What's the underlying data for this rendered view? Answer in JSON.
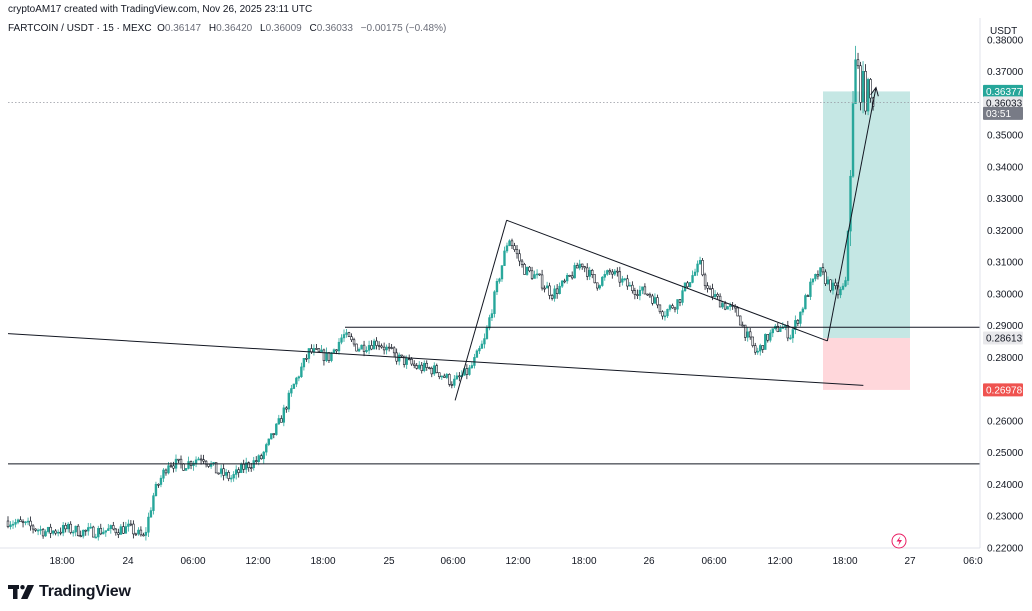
{
  "header": {
    "credit": "cryptoAM17 created with TradingView.com, Nov 26, 2025 23:11 UTC",
    "symbol": "FARTCOIN / USDT · 15 · MEXC",
    "open_label": "O",
    "open": "0.36147",
    "high_label": "H",
    "high": "0.36420",
    "low_label": "L",
    "low": "0.36009",
    "close_label": "C",
    "close": "0.36033",
    "change": "−0.00175 (−0.48%)"
  },
  "brand": {
    "name": "TradingView",
    "logo_icon": "tradingview-logo-icon"
  },
  "colors": {
    "up": "#26a69a",
    "down": "#131722",
    "target_zone": "#b2dfdb",
    "stop_zone": "#ffcdd2",
    "last_price": "#26a69a",
    "stop_label": "#ef5350",
    "gray_label": "#787b86",
    "line": "#131722"
  },
  "chart_data": {
    "type": "candlestick",
    "currency": "USDT",
    "ylim": [
      0.22,
      0.385
    ],
    "y_ticks": [
      "0.38000",
      "0.37000",
      "0.36000",
      "0.35000",
      "0.34000",
      "0.33000",
      "0.32000",
      "0.31000",
      "0.30000",
      "0.29000",
      "0.28000",
      "0.27000",
      "0.26000",
      "0.25000",
      "0.24000",
      "0.23000",
      "0.22000"
    ],
    "x_ticks": [
      "18:00",
      "24",
      "06:00",
      "12:00",
      "18:00",
      "25",
      "06:00",
      "12:00",
      "18:00",
      "26",
      "06:00",
      "12:00",
      "18:00",
      "27",
      "06:0"
    ],
    "price_labels": [
      {
        "text": "0.36377",
        "value": 0.36377,
        "role": "target"
      },
      {
        "text": "0.36033",
        "value": 0.36033,
        "role": "last"
      },
      {
        "text": "03:51",
        "value": null,
        "role": "countdown"
      },
      {
        "text": "0.28613",
        "value": 0.28613,
        "role": "entry"
      },
      {
        "text": "0.26978",
        "value": 0.26978,
        "role": "stop"
      }
    ],
    "horizontal_levels": [
      0.2895,
      0.2465
    ],
    "trendlines": [
      {
        "name": "descending support",
        "from": [
          0.0,
          0.2875
        ],
        "to": [
          0.88,
          0.2712
        ]
      },
      {
        "name": "pennant upper",
        "from": [
          0.513,
          0.3232
        ],
        "to": [
          0.843,
          0.2852
        ]
      },
      {
        "name": "flagpole",
        "from": [
          0.46,
          0.2665
        ],
        "to": [
          0.513,
          0.3232
        ]
      }
    ],
    "arrow": {
      "from": [
        0.843,
        0.2852
      ],
      "to": [
        0.893,
        0.365
      ]
    },
    "position": {
      "entry": 0.28613,
      "target": 0.36377,
      "stop": 0.26978
    },
    "candle_path": [
      [
        0.0,
        0.2285
      ],
      [
        0.02,
        0.227
      ],
      [
        0.04,
        0.225
      ],
      [
        0.06,
        0.226
      ],
      [
        0.08,
        0.225
      ],
      [
        0.1,
        0.2255
      ],
      [
        0.125,
        0.2262
      ],
      [
        0.14,
        0.223
      ],
      [
        0.15,
        0.237
      ],
      [
        0.165,
        0.247
      ],
      [
        0.18,
        0.246
      ],
      [
        0.2,
        0.249
      ],
      [
        0.215,
        0.244
      ],
      [
        0.23,
        0.242
      ],
      [
        0.245,
        0.246
      ],
      [
        0.26,
        0.248
      ],
      [
        0.28,
        0.26
      ],
      [
        0.295,
        0.272
      ],
      [
        0.31,
        0.282
      ],
      [
        0.33,
        0.28
      ],
      [
        0.345,
        0.287
      ],
      [
        0.36,
        0.283
      ],
      [
        0.38,
        0.285
      ],
      [
        0.4,
        0.28
      ],
      [
        0.42,
        0.277
      ],
      [
        0.44,
        0.276
      ],
      [
        0.458,
        0.272
      ],
      [
        0.475,
        0.276
      ],
      [
        0.49,
        0.285
      ],
      [
        0.505,
        0.305
      ],
      [
        0.515,
        0.318
      ],
      [
        0.53,
        0.308
      ],
      [
        0.545,
        0.305
      ],
      [
        0.56,
        0.3
      ],
      [
        0.575,
        0.304
      ],
      [
        0.59,
        0.31
      ],
      [
        0.605,
        0.303
      ],
      [
        0.62,
        0.307
      ],
      [
        0.64,
        0.302
      ],
      [
        0.66,
        0.3
      ],
      [
        0.675,
        0.294
      ],
      [
        0.69,
        0.298
      ],
      [
        0.7,
        0.304
      ],
      [
        0.712,
        0.309
      ],
      [
        0.72,
        0.301
      ],
      [
        0.735,
        0.297
      ],
      [
        0.75,
        0.294
      ],
      [
        0.76,
        0.287
      ],
      [
        0.77,
        0.281
      ],
      [
        0.78,
        0.286
      ],
      [
        0.795,
        0.29
      ],
      [
        0.805,
        0.287
      ],
      [
        0.815,
        0.294
      ],
      [
        0.825,
        0.302
      ],
      [
        0.835,
        0.307
      ],
      [
        0.845,
        0.303
      ],
      [
        0.855,
        0.3
      ],
      [
        0.862,
        0.303
      ],
      [
        0.868,
        0.35
      ],
      [
        0.872,
        0.372
      ],
      [
        0.878,
        0.365
      ],
      [
        0.885,
        0.362
      ],
      [
        0.89,
        0.3603
      ]
    ]
  }
}
